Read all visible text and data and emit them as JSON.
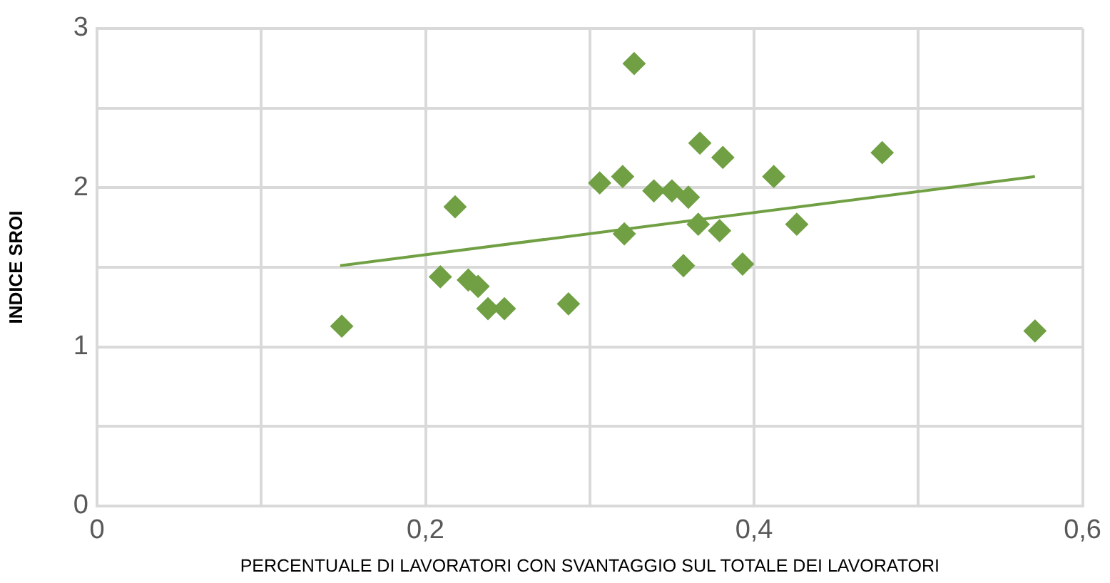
{
  "chart_data": {
    "type": "scatter",
    "xlabel": "PERCENTUALE DI LAVORATORI CON SVANTAGGIO SUL TOTALE DEI LAVORATORI",
    "ylabel": "INDICE SROI",
    "xlim": [
      0,
      0.6
    ],
    "xticks": [
      {
        "value": 0,
        "label": "0"
      },
      {
        "value": 0.1,
        "label": null
      },
      {
        "value": 0.2,
        "label": "0,2"
      },
      {
        "value": 0.3,
        "label": null
      },
      {
        "value": 0.4,
        "label": "0,4"
      },
      {
        "value": 0.5,
        "label": null
      },
      {
        "value": 0.6,
        "label": "0,6"
      }
    ],
    "ylim": [
      0,
      3
    ],
    "yticks": [
      0,
      {
        "value": 0.5,
        "label": null
      },
      1,
      {
        "value": 1.5,
        "label": null
      },
      2,
      {
        "value": 2.5,
        "label": null
      },
      3
    ],
    "grid": true,
    "marker": "diamond",
    "legend": false,
    "series": [
      {
        "type": "scatter",
        "color": "#70a043",
        "x": [
          0.149,
          0.209,
          0.218,
          0.226,
          0.232,
          0.238,
          0.248,
          0.287,
          0.306,
          0.32,
          0.321,
          0.327,
          0.339,
          0.35,
          0.36,
          0.357,
          0.367,
          0.366,
          0.381,
          0.379,
          0.393,
          0.412,
          0.426,
          0.478,
          0.571
        ],
        "values": [
          1.13,
          1.44,
          1.88,
          1.42,
          1.38,
          1.24,
          1.24,
          1.27,
          2.03,
          2.07,
          1.71,
          2.78,
          1.98,
          1.98,
          1.94,
          1.51,
          2.28,
          1.77,
          2.19,
          1.73,
          1.52,
          2.07,
          1.77,
          2.22,
          1.1
        ]
      },
      {
        "type": "line",
        "color": "#70a043",
        "marker": "none",
        "x": [
          0.148,
          0.571
        ],
        "values": [
          1.51,
          2.07
        ]
      }
    ]
  }
}
